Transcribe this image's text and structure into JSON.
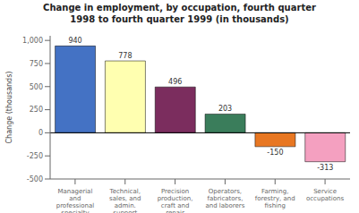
{
  "chart_data": {
    "type": "bar",
    "title": "Change in employment, by occupation, fourth quarter\n1998 to fourth quarter 1999 (in thousands)",
    "categories": [
      "Managerial\nand\nprofessional\nspecialty",
      "Technical,\nsales, and\nadmin.\nsupport",
      "Precision\nproduction,\ncraft and\nrepair",
      "Operators,\nfabricators,\nand laborers",
      "Farming,\nforestry, and\nfishing",
      "Service\noccupations"
    ],
    "values": [
      940,
      778,
      496,
      203,
      -150,
      -313
    ],
    "colors": [
      "#4472C4",
      "#FFFFB0",
      "#7B2D5E",
      "#3A7D5B",
      "#E87722",
      "#F4A0C0"
    ],
    "ylabel": "Change (thousands)",
    "ylim": [
      -500,
      1050
    ],
    "yticks": [
      -500,
      -250,
      0,
      250,
      500,
      750,
      {
        "value": 1000,
        "label": "1,000"
      }
    ],
    "grid": false,
    "data_labels": true
  }
}
